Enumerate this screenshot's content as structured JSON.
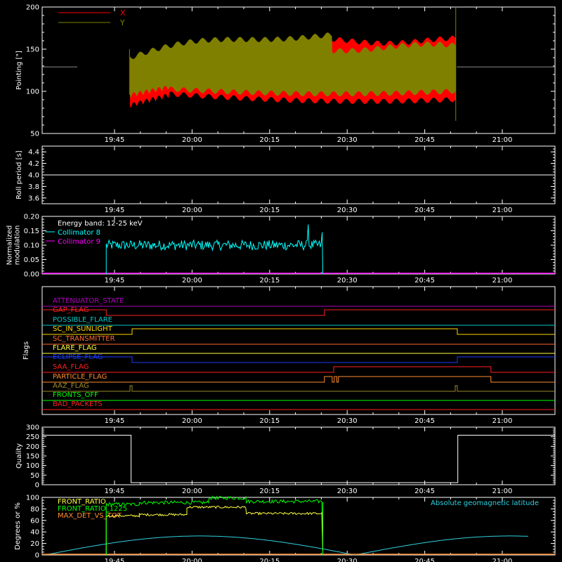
{
  "time_ticks": [
    "19:45",
    "20:00",
    "20:15",
    "20:30",
    "20:45",
    "21:00"
  ],
  "chart_data": [
    {
      "type": "area",
      "id": "pointing",
      "ylabel": "Pointing [\"]",
      "ylim": [
        50,
        200
      ],
      "yticks": [
        50,
        100,
        150,
        200
      ],
      "series": [
        {
          "name": "X",
          "color": "#ff0000"
        },
        {
          "name": "Y",
          "color": "#808000"
        }
      ],
      "baseline": 129
    },
    {
      "type": "line",
      "id": "roll",
      "ylabel": "Roll period [s]",
      "ylim": [
        3.5,
        4.5
      ],
      "yticks": [
        "3.6",
        "3.8",
        "4.0",
        "4.2",
        "4.4"
      ],
      "value": 4.0
    },
    {
      "type": "line",
      "id": "modulation",
      "ylabel": [
        "Normalized",
        "modulation"
      ],
      "ylim": [
        0,
        0.2
      ],
      "yticks": [
        "0.00",
        "0.05",
        "0.10",
        "0.15",
        "0.20"
      ],
      "annotation": "Energy band: 12-25 keV",
      "series": [
        {
          "name": "Collimator 8",
          "color": "#00ffff"
        },
        {
          "name": "Collimator 9",
          "color": "#ff00ff"
        }
      ]
    },
    {
      "type": "line",
      "id": "flags",
      "ylabel": "Flags",
      "flags": [
        {
          "name": "ATTENUATOR_STATE",
          "color": "#b000c0"
        },
        {
          "name": "GAP_FLAG",
          "color": "#ff2020"
        },
        {
          "name": "POSSIBLE_FLARE",
          "color": "#00c8c8"
        },
        {
          "name": "SC_IN_SUNLIGHT",
          "color": "#ffd700"
        },
        {
          "name": "SC_TRANSMITTER",
          "color": "#ff6a30"
        },
        {
          "name": "FLARE_FLAG",
          "color": "#ffff40"
        },
        {
          "name": "ECLIPSE_FLAG",
          "color": "#1a3cff"
        },
        {
          "name": "SAA_FLAG",
          "color": "#ff2020"
        },
        {
          "name": "PARTICLE_FLAG",
          "color": "#ff8c2a"
        },
        {
          "name": "AAZ_FLAG",
          "color": "#9a8a2a"
        },
        {
          "name": "FRONTS_OFF",
          "color": "#00ff00"
        },
        {
          "name": "BAD_PACKETS",
          "color": "#ff2020"
        }
      ]
    },
    {
      "type": "line",
      "id": "quality",
      "ylabel": "Quality",
      "ylim": [
        0,
        300
      ],
      "yticks": [
        0,
        50,
        100,
        150,
        200,
        250,
        300
      ],
      "value": 258
    },
    {
      "type": "line",
      "id": "ratios",
      "ylabel": "Degrees or %",
      "ylim": [
        0,
        100
      ],
      "yticks": [
        0,
        20,
        40,
        60,
        80,
        100
      ],
      "series": [
        {
          "name": "FRONT_RATIO",
          "color": "#ffff40"
        },
        {
          "name": "FRONT_RATIO_1225",
          "color": "#00ff00"
        },
        {
          "name": "MAX_DET_VS_TOT",
          "color": "#ff8c2a"
        },
        {
          "name": "Absolute geomagnetic latitude",
          "color": "#30d0e0"
        }
      ]
    }
  ]
}
